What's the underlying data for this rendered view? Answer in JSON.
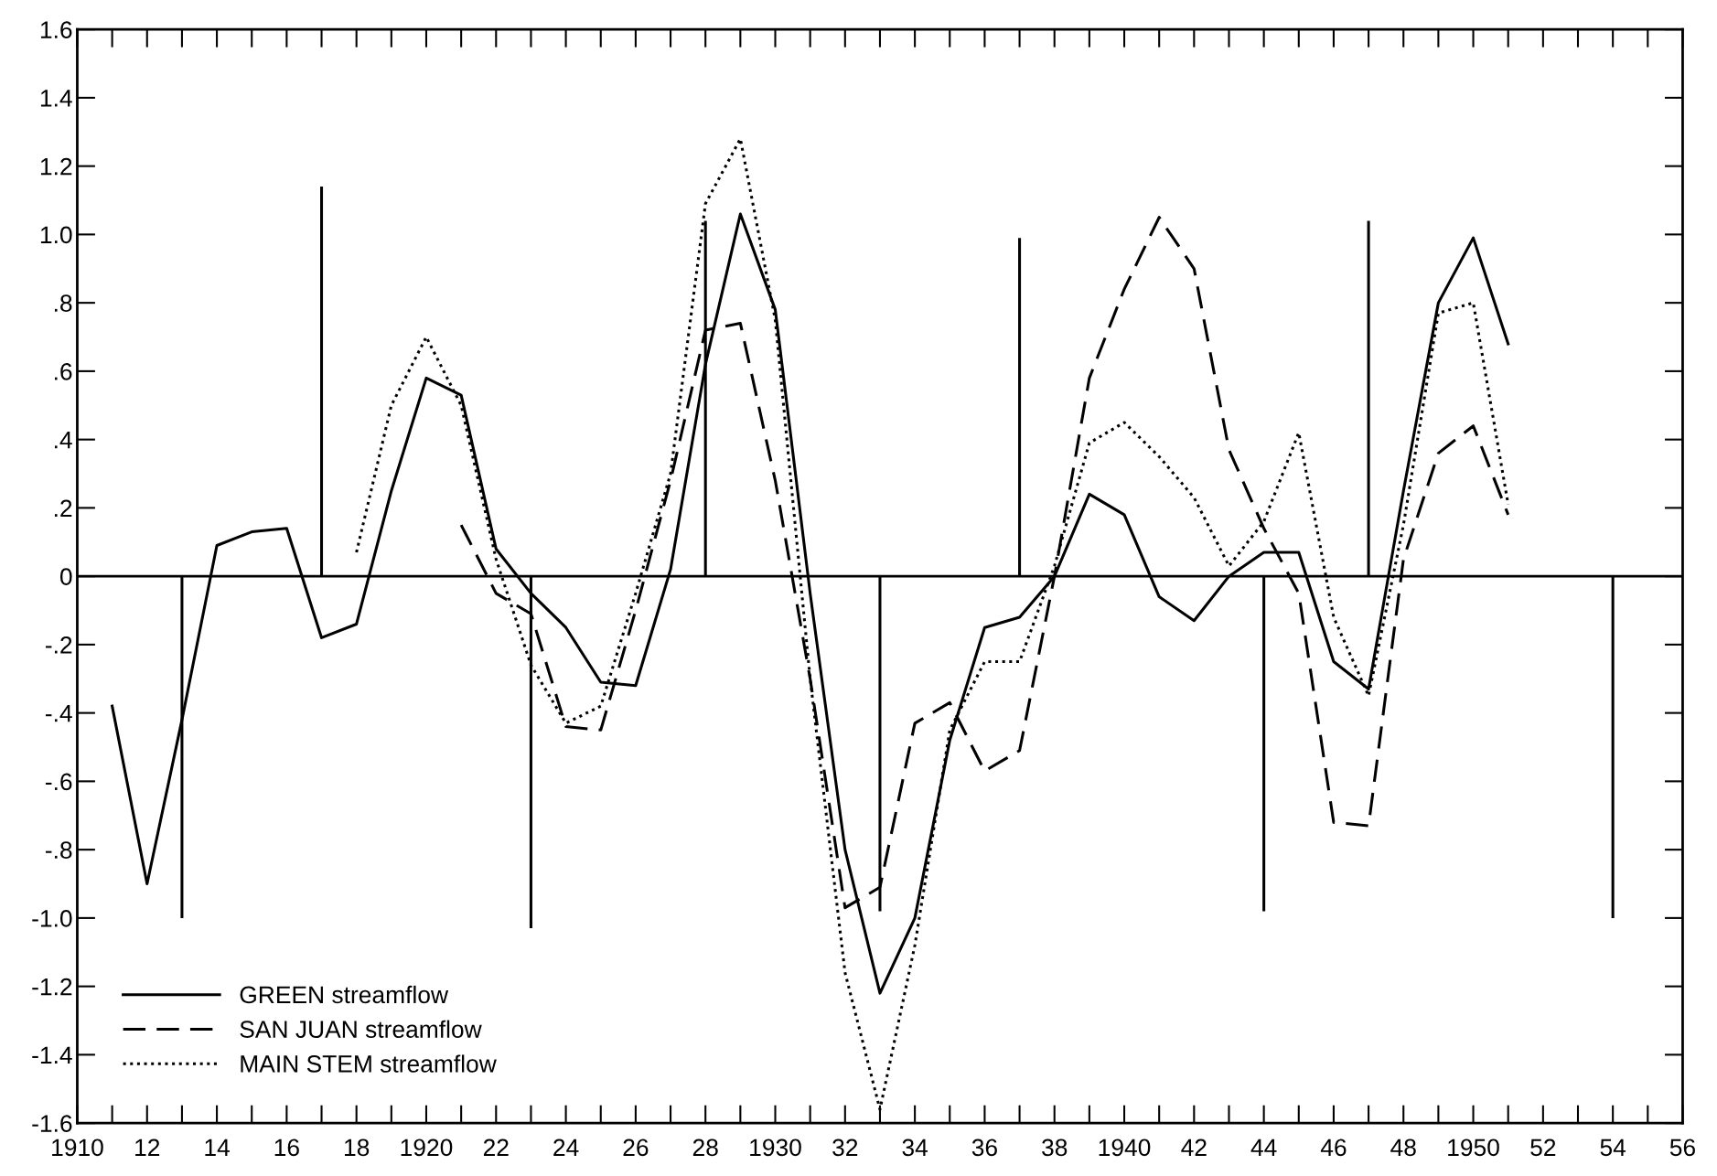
{
  "chart_data": {
    "type": "line",
    "xlim": [
      1910,
      1956
    ],
    "ylim": [
      -1.6,
      1.6
    ],
    "xticks": [
      1910,
      {
        "value": 1912,
        "label": "12"
      },
      {
        "value": 1914,
        "label": "14"
      },
      {
        "value": 1916,
        "label": "16"
      },
      {
        "value": 1918,
        "label": "18"
      },
      1920,
      {
        "value": 1922,
        "label": "22"
      },
      {
        "value": 1924,
        "label": "24"
      },
      {
        "value": 1926,
        "label": "26"
      },
      {
        "value": 1928,
        "label": "28"
      },
      1930,
      {
        "value": 1932,
        "label": "32"
      },
      {
        "value": 1934,
        "label": "34"
      },
      {
        "value": 1936,
        "label": "36"
      },
      {
        "value": 1938,
        "label": "38"
      },
      1940,
      {
        "value": 1942,
        "label": "42"
      },
      {
        "value": 1944,
        "label": "44"
      },
      {
        "value": 1946,
        "label": "46"
      },
      {
        "value": 1948,
        "label": "48"
      },
      1950,
      {
        "value": 1952,
        "label": "52"
      },
      {
        "value": 1954,
        "label": "54"
      },
      {
        "value": 1956,
        "label": "56"
      }
    ],
    "yticks": [
      {
        "value": -1.6,
        "label": "-1.6"
      },
      {
        "value": -1.4,
        "label": "-1.4"
      },
      {
        "value": -1.2,
        "label": "-1.2"
      },
      {
        "value": -1.0,
        "label": "-1.0"
      },
      {
        "value": -0.8,
        "label": "-.8"
      },
      {
        "value": -0.6,
        "label": "-.6"
      },
      {
        "value": -0.4,
        "label": "-.4"
      },
      {
        "value": -0.2,
        "label": "-.2"
      },
      0,
      {
        "value": 0.2,
        "label": ".2"
      },
      {
        "value": 0.4,
        "label": ".4"
      },
      {
        "value": 0.6,
        "label": ".6"
      },
      {
        "value": 0.8,
        "label": ".8"
      },
      {
        "value": 1.0,
        "label": "1.0"
      },
      {
        "value": 1.2,
        "label": "1.2"
      },
      {
        "value": 1.4,
        "label": "1.4"
      },
      {
        "value": 1.6,
        "label": "1.6"
      }
    ],
    "grid": false,
    "legend": "bottom left",
    "marker": "none",
    "ref_lines": [
      {
        "axis": "y",
        "value": 0,
        "color": "#000000",
        "line_style": "solid"
      }
    ],
    "series": [
      {
        "name": "GREEN streamflow",
        "color": "#000000",
        "line_style": "solid",
        "x": [
          1911,
          1912,
          1913,
          1914,
          1915,
          1916,
          1917,
          1918,
          1919,
          1920,
          1921,
          1922,
          1923,
          1924,
          1925,
          1926,
          1927,
          1928,
          1929,
          1930,
          1931,
          1932,
          1933,
          1934,
          1935,
          1936,
          1937,
          1938,
          1939,
          1940,
          1941,
          1942,
          1943,
          1944,
          1945,
          1946,
          1947,
          1948,
          1949,
          1950,
          1951
        ],
        "values": [
          -0.38,
          -0.9,
          -0.42,
          0.09,
          0.13,
          0.14,
          -0.18,
          -0.14,
          0.25,
          0.58,
          0.53,
          0.08,
          -0.05,
          -0.15,
          -0.31,
          -0.32,
          0.02,
          0.62,
          1.06,
          0.78,
          -0.05,
          -0.8,
          -1.22,
          -1.0,
          -0.48,
          -0.15,
          -0.12,
          0.0,
          0.24,
          0.18,
          -0.06,
          -0.13,
          0.0,
          0.07,
          0.07,
          -0.25,
          -0.33,
          0.25,
          0.8,
          0.99,
          0.68
        ]
      },
      {
        "name": "SAN JUAN streamflow",
        "color": "#000000",
        "line_style": "dashed",
        "x": [
          1921,
          1922,
          1923,
          1924,
          1925,
          1926,
          1927,
          1928,
          1929,
          1930,
          1931,
          1932,
          1933,
          1934,
          1935,
          1936,
          1937,
          1938,
          1939,
          1940,
          1941,
          1942,
          1943,
          1944,
          1945,
          1946,
          1947,
          1948,
          1949,
          1950,
          1951
        ],
        "values": [
          0.15,
          -0.05,
          -0.11,
          -0.44,
          -0.45,
          -0.1,
          0.28,
          0.72,
          0.74,
          0.28,
          -0.3,
          -0.97,
          -0.91,
          -0.43,
          -0.37,
          -0.57,
          -0.51,
          0.0,
          0.58,
          0.84,
          1.05,
          0.9,
          0.37,
          0.14,
          -0.05,
          -0.72,
          -0.73,
          0.05,
          0.36,
          0.44,
          0.18
        ]
      },
      {
        "name": "MAIN STEM streamflow",
        "color": "#000000",
        "line_style": "dotted",
        "x": [
          1918,
          1919,
          1920,
          1921,
          1922,
          1923,
          1924,
          1925,
          1926,
          1927,
          1928,
          1929,
          1930,
          1931,
          1932,
          1933,
          1934,
          1935,
          1936,
          1937,
          1938,
          1939,
          1940,
          1941,
          1942,
          1943,
          1944,
          1945,
          1946,
          1947,
          1948,
          1949,
          1950,
          1951
        ],
        "values": [
          0.07,
          0.5,
          0.7,
          0.5,
          0.05,
          -0.26,
          -0.43,
          -0.38,
          -0.05,
          0.3,
          1.09,
          1.28,
          0.75,
          -0.3,
          -1.16,
          -1.56,
          -1.08,
          -0.45,
          -0.25,
          -0.25,
          0.03,
          0.39,
          0.45,
          0.35,
          0.23,
          0.03,
          0.16,
          0.42,
          -0.12,
          -0.35,
          0.15,
          0.77,
          0.8,
          0.21
        ]
      },
      {
        "type": "bar",
        "color": "#000000",
        "x": [
          1913,
          1917,
          1923,
          1928,
          1933,
          1937,
          1944,
          1947,
          1954
        ],
        "values": [
          -1.0,
          1.14,
          -1.03,
          1.04,
          -0.98,
          0.99,
          -0.98,
          1.04,
          -1.0
        ]
      }
    ]
  }
}
